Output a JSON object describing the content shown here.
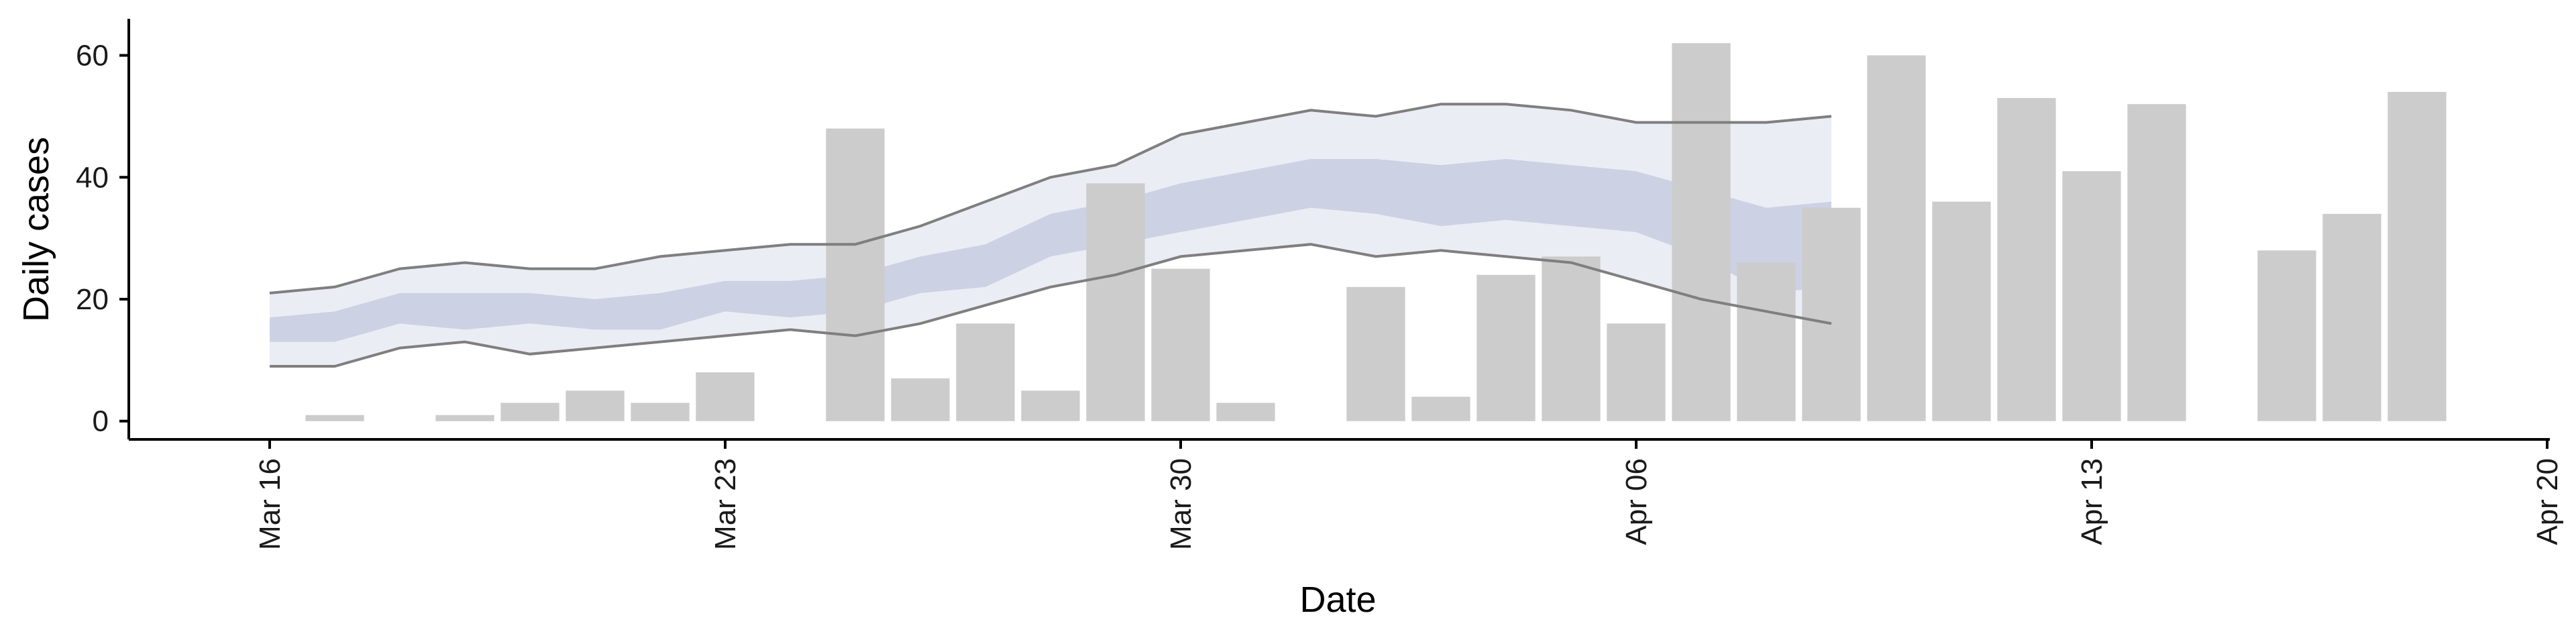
{
  "chart_data": {
    "type": "bar",
    "title": "",
    "xlabel": "Date",
    "ylabel": "Daily cases",
    "ylim": [
      -3,
      66
    ],
    "xlim": [
      "2020-03-14",
      "2020-04-20"
    ],
    "grid": false,
    "legend": "none",
    "colors": {
      "bars": "#cccccc",
      "band_outer": "#e4e7f1",
      "band_inner": "#c2c8dc",
      "band_lines": "#7f7f7f",
      "axis": "#000000"
    },
    "y_ticks": [
      0,
      20,
      40,
      60
    ],
    "x_ticks": [
      {
        "date": "2020-03-16",
        "label": "Mar 16"
      },
      {
        "date": "2020-03-23",
        "label": "Mar 23"
      },
      {
        "date": "2020-03-30",
        "label": "Mar 30"
      },
      {
        "date": "2020-04-06",
        "label": "Apr 06"
      },
      {
        "date": "2020-04-13",
        "label": "Apr 13"
      },
      {
        "date": "2020-04-20",
        "label": "Apr 20"
      }
    ],
    "bars": [
      {
        "date": "2020-03-17",
        "value": 1
      },
      {
        "date": "2020-03-19",
        "value": 1
      },
      {
        "date": "2020-03-20",
        "value": 3
      },
      {
        "date": "2020-03-21",
        "value": 5
      },
      {
        "date": "2020-03-22",
        "value": 3
      },
      {
        "date": "2020-03-23",
        "value": 8
      },
      {
        "date": "2020-03-25",
        "value": 48
      },
      {
        "date": "2020-03-26",
        "value": 7
      },
      {
        "date": "2020-03-27",
        "value": 16
      },
      {
        "date": "2020-03-28",
        "value": 5
      },
      {
        "date": "2020-03-29",
        "value": 39
      },
      {
        "date": "2020-03-30",
        "value": 25
      },
      {
        "date": "2020-03-31",
        "value": 3
      },
      {
        "date": "2020-04-02",
        "value": 22
      },
      {
        "date": "2020-04-03",
        "value": 4
      },
      {
        "date": "2020-04-04",
        "value": 24
      },
      {
        "date": "2020-04-05",
        "value": 27
      },
      {
        "date": "2020-04-06",
        "value": 16
      },
      {
        "date": "2020-04-07",
        "value": 62
      },
      {
        "date": "2020-04-08",
        "value": 26
      },
      {
        "date": "2020-04-09",
        "value": 35
      },
      {
        "date": "2020-04-10",
        "value": 60
      },
      {
        "date": "2020-04-11",
        "value": 36
      },
      {
        "date": "2020-04-12",
        "value": 53
      },
      {
        "date": "2020-04-13",
        "value": 41
      },
      {
        "date": "2020-04-14",
        "value": 52
      },
      {
        "date": "2020-04-16",
        "value": 28
      },
      {
        "date": "2020-04-17",
        "value": 34
      },
      {
        "date": "2020-04-18",
        "value": 54
      }
    ],
    "interval": {
      "dates": [
        "2020-03-16",
        "2020-03-17",
        "2020-03-18",
        "2020-03-19",
        "2020-03-20",
        "2020-03-21",
        "2020-03-22",
        "2020-03-23",
        "2020-03-24",
        "2020-03-25",
        "2020-03-26",
        "2020-03-27",
        "2020-03-28",
        "2020-03-29",
        "2020-03-30",
        "2020-03-31",
        "2020-04-01",
        "2020-04-02",
        "2020-04-03",
        "2020-04-04",
        "2020-04-05",
        "2020-04-06",
        "2020-04-07",
        "2020-04-08",
        "2020-04-09"
      ],
      "outer_upper": [
        21,
        22,
        25,
        26,
        25,
        25,
        27,
        28,
        29,
        29,
        32,
        36,
        40,
        42,
        47,
        49,
        51,
        50,
        52,
        52,
        51,
        49,
        49,
        49,
        50
      ],
      "outer_lower": [
        9,
        9,
        12,
        13,
        11,
        12,
        13,
        14,
        15,
        14,
        16,
        19,
        22,
        24,
        27,
        28,
        29,
        27,
        28,
        27,
        26,
        23,
        20,
        18,
        16
      ],
      "inner_upper": [
        17,
        18,
        21,
        21,
        21,
        20,
        21,
        23,
        23,
        24,
        27,
        29,
        34,
        36,
        39,
        41,
        43,
        43,
        42,
        43,
        42,
        41,
        38,
        35,
        36
      ],
      "inner_lower": [
        13,
        13,
        16,
        15,
        16,
        15,
        15,
        18,
        17,
        18,
        21,
        22,
        27,
        29,
        31,
        33,
        35,
        34,
        32,
        33,
        32,
        31,
        27,
        21,
        22
      ]
    }
  }
}
